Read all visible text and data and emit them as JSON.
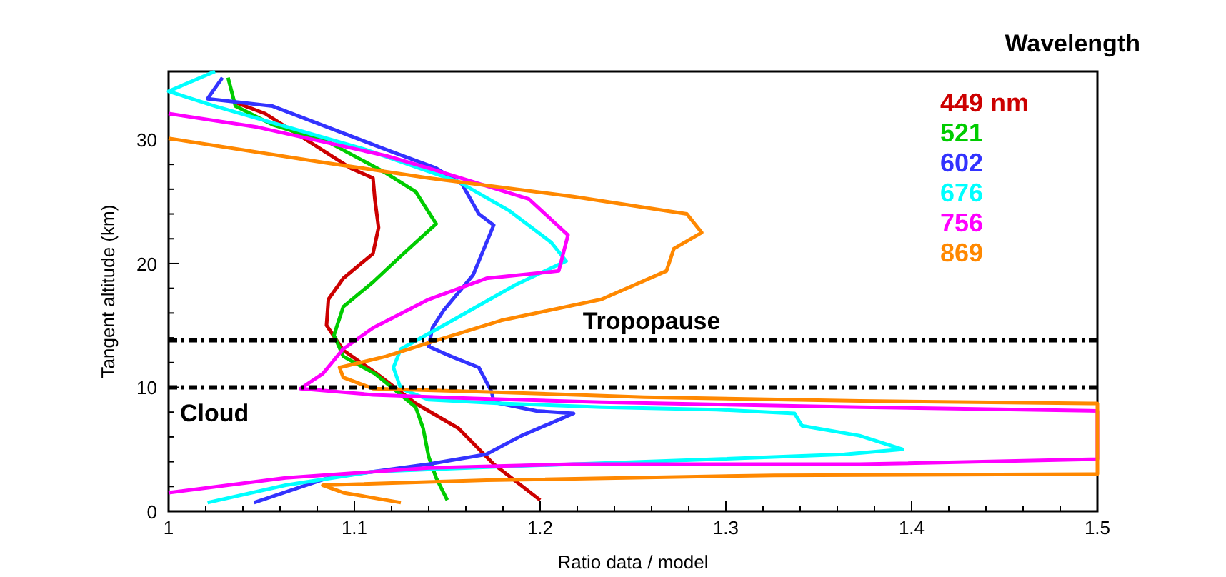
{
  "chart_data": {
    "type": "line",
    "xlabel": "Ratio data / model",
    "ylabel": "Tangent altitude (km)",
    "legend_title": "Wavelength",
    "legend": "top right",
    "xlim": [
      1,
      1.5
    ],
    "ylim": [
      0,
      35.5
    ],
    "xticks": [
      1,
      {
        "value": 1.02,
        "label": null
      },
      {
        "value": 1.04,
        "label": null
      },
      {
        "value": 1.06,
        "label": null
      },
      {
        "value": 1.08,
        "label": null
      },
      1.1,
      {
        "value": 1.12,
        "label": null
      },
      {
        "value": 1.14,
        "label": null
      },
      {
        "value": 1.16,
        "label": null
      },
      {
        "value": 1.18,
        "label": null
      },
      1.2,
      {
        "value": 1.22,
        "label": null
      },
      {
        "value": 1.24,
        "label": null
      },
      {
        "value": 1.26,
        "label": null
      },
      {
        "value": 1.28,
        "label": null
      },
      1.3,
      {
        "value": 1.32,
        "label": null
      },
      {
        "value": 1.34,
        "label": null
      },
      {
        "value": 1.36,
        "label": null
      },
      {
        "value": 1.38,
        "label": null
      },
      1.4,
      {
        "value": 1.42,
        "label": null
      },
      {
        "value": 1.44,
        "label": null
      },
      {
        "value": 1.46,
        "label": null
      },
      {
        "value": 1.48,
        "label": null
      },
      1.5
    ],
    "yticks": [
      0,
      {
        "value": 2,
        "label": null
      },
      {
        "value": 4,
        "label": null
      },
      {
        "value": 6,
        "label": null
      },
      {
        "value": 8,
        "label": null
      },
      10,
      {
        "value": 12,
        "label": null
      },
      {
        "value": 14,
        "label": null
      },
      {
        "value": 16,
        "label": null
      },
      {
        "value": 18,
        "label": null
      },
      20,
      {
        "value": 22,
        "label": null
      },
      {
        "value": 24,
        "label": null
      },
      {
        "value": 26,
        "label": null
      },
      {
        "value": 28,
        "label": null
      },
      30,
      {
        "value": 32,
        "label": null
      },
      {
        "value": 34,
        "label": null
      }
    ],
    "grid": false,
    "ref_lines": [
      {
        "axis": "y",
        "value": 13.8,
        "label": "Tropopause",
        "color": "#000000",
        "line_style": "dashdot"
      },
      {
        "axis": "y",
        "value": 10,
        "label": "Cloud",
        "color": "#000000",
        "line_style": "dashdot"
      }
    ],
    "series": [
      {
        "name": "449 nm",
        "color": "#cc0000",
        "x": [
          1.2,
          1.175,
          1.156,
          1.133,
          1.113,
          1.094,
          1.085,
          1.086,
          1.094,
          1.11,
          1.113,
          1.111,
          1.11,
          1.098,
          1.052,
          1.036
        ],
        "values": [
          0.9,
          3.8,
          6.7,
          8.7,
          11,
          13,
          15,
          17.1,
          18.8,
          20.8,
          22.9,
          25.2,
          26.9,
          27.7,
          32.1,
          33
        ]
      },
      {
        "name": "521",
        "color": "#00cc00",
        "x": [
          1.15,
          1.144,
          1.14,
          1.137,
          1.133,
          1.121,
          1.111,
          1.094,
          1.089,
          1.094,
          1.11,
          1.125,
          1.144,
          1.133,
          1.117,
          1.086,
          1.056,
          1.036,
          1.032
        ],
        "values": [
          0.9,
          2.7,
          4.4,
          6.7,
          8.4,
          9.9,
          11.1,
          12.5,
          14.2,
          16.5,
          18.5,
          20.6,
          23.2,
          25.8,
          27.3,
          29.8,
          31.2,
          32.7,
          35
        ]
      },
      {
        "name": "602",
        "color": "#3333ff",
        "x": [
          1.046,
          1.086,
          1.14,
          1.171,
          1.19,
          1.218,
          1.198,
          1.175,
          1.174,
          1.167,
          1.152,
          1.14,
          1.142,
          1.148,
          1.164,
          1.175,
          1.167,
          1.158,
          1.144,
          1.117,
          1.056,
          1.021,
          1.029
        ],
        "values": [
          0.7,
          2.7,
          3.8,
          4.6,
          6.1,
          7.9,
          8.1,
          8.8,
          9.6,
          11.6,
          12.5,
          13.3,
          14.8,
          16.2,
          19.1,
          23.1,
          24,
          26.4,
          27.7,
          29.2,
          32.7,
          33.3,
          35
        ]
      },
      {
        "name": "676",
        "color": "#00ffff",
        "x": [
          1.021,
          1.063,
          1.11,
          1.179,
          1.295,
          1.364,
          1.395,
          1.372,
          1.341,
          1.337,
          1.295,
          1.233,
          1.179,
          1.14,
          1.125,
          1.121,
          1.125,
          1.148,
          1.187,
          1.214,
          1.206,
          1.183,
          1.156,
          1.106,
          1.025,
          1.0,
          1.025
        ],
        "values": [
          0.7,
          2.1,
          3.2,
          3.6,
          4.2,
          4.6,
          5,
          6.1,
          6.9,
          7.9,
          8.2,
          8.4,
          8.7,
          9,
          9.9,
          11.6,
          13.1,
          15,
          18.3,
          20.2,
          21.7,
          24.3,
          26.6,
          29.2,
          32.7,
          33.9,
          35.5
        ]
      },
      {
        "name": "756",
        "color": "#ff00ff",
        "x": [
          1.0,
          1.063,
          1.14,
          1.218,
          1.372,
          1.5,
          1.5,
          1.372,
          1.233,
          1.164,
          1.11,
          1.071,
          1.083,
          1.094,
          1.11,
          1.14,
          1.171,
          1.21,
          1.215,
          1.194,
          1.14,
          1.117,
          1.048,
          1.0
        ],
        "values": [
          1.5,
          2.7,
          3.5,
          3.8,
          3.8,
          4.2,
          8.1,
          8.4,
          8.8,
          9.1,
          9.4,
          9.9,
          11.1,
          13.1,
          14.8,
          17.1,
          18.8,
          19.4,
          22.3,
          25.2,
          27.7,
          28.7,
          31,
          32.1
        ]
      },
      {
        "name": "869",
        "color": "#ff8800",
        "x": [
          1.125,
          1.094,
          1.083,
          1.171,
          1.326,
          1.5,
          1.5,
          1.372,
          1.256,
          1.179,
          1.11,
          1.094,
          1.092,
          1.117,
          1.14,
          1.179,
          1.233,
          1.268,
          1.272,
          1.287,
          1.279,
          1.218,
          1.14,
          1.086,
          1.0
        ],
        "values": [
          0.7,
          1.5,
          2.1,
          2.5,
          2.9,
          3,
          8.7,
          8.9,
          9.2,
          9.6,
          9.9,
          10.8,
          11.6,
          12.5,
          13.6,
          15.4,
          17.1,
          19.4,
          21.2,
          22.5,
          24,
          25.4,
          26.9,
          28.1,
          30.1
        ]
      }
    ]
  }
}
